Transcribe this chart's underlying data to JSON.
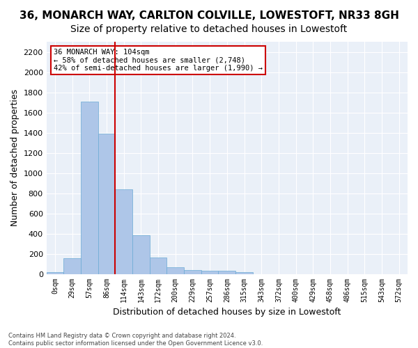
{
  "title1": "36, MONARCH WAY, CARLTON COLVILLE, LOWESTOFT, NR33 8GH",
  "title2": "Size of property relative to detached houses in Lowestoft",
  "xlabel": "Distribution of detached houses by size in Lowestoft",
  "ylabel": "Number of detached properties",
  "bar_values": [
    20,
    155,
    1710,
    1390,
    835,
    385,
    160,
    65,
    38,
    28,
    28,
    18,
    0,
    0,
    0,
    0,
    0,
    0,
    0,
    0,
    0
  ],
  "bar_labels": [
    "0sqm",
    "29sqm",
    "57sqm",
    "86sqm",
    "114sqm",
    "143sqm",
    "172sqm",
    "200sqm",
    "229sqm",
    "257sqm",
    "286sqm",
    "315sqm",
    "343sqm",
    "372sqm",
    "400sqm",
    "429sqm",
    "458sqm",
    "486sqm",
    "515sqm",
    "543sqm",
    "572sqm"
  ],
  "bar_color": "#aec6e8",
  "bar_edge_color": "#6aaad4",
  "vline_x": 3.5,
  "vline_color": "#cc0000",
  "annotation_text": "36 MONARCH WAY: 104sqm\n← 58% of detached houses are smaller (2,748)\n42% of semi-detached houses are larger (1,990) →",
  "annotation_box_color": "#ffffff",
  "annotation_box_edge": "#cc0000",
  "ylim": [
    0,
    2300
  ],
  "yticks": [
    0,
    200,
    400,
    600,
    800,
    1000,
    1200,
    1400,
    1600,
    1800,
    2000,
    2200
  ],
  "bg_color": "#eaf0f8",
  "footnote": "Contains HM Land Registry data © Crown copyright and database right 2024.\nContains public sector information licensed under the Open Government Licence v3.0.",
  "title1_fontsize": 11,
  "title2_fontsize": 10,
  "xlabel_fontsize": 9,
  "ylabel_fontsize": 9
}
